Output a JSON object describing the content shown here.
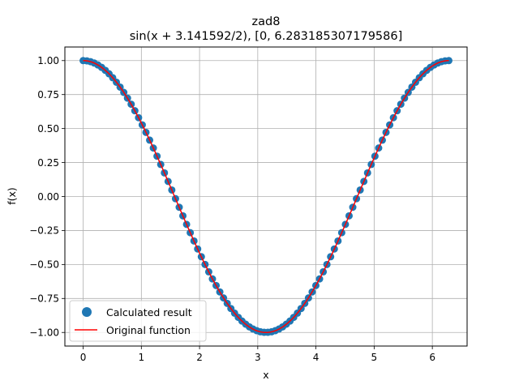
{
  "chart_data": {
    "type": "scatter",
    "title": "zad8",
    "subtitle": "sin(x + 3.141592/2), [0, 6.283185307179586]",
    "xlabel": "x",
    "ylabel": "f(x)",
    "xlim": [
      -0.3142,
      6.5973
    ],
    "ylim": [
      -1.1,
      1.1
    ],
    "xticks": [
      0,
      1,
      2,
      3,
      4,
      5,
      6
    ],
    "xtick_labels": [
      "0",
      "1",
      "2",
      "3",
      "4",
      "5",
      "6"
    ],
    "yticks": [
      1.0,
      0.75,
      0.5,
      0.25,
      0.0,
      -0.25,
      -0.5,
      -0.75,
      -1.0
    ],
    "ytick_labels": [
      "1.00",
      "0.75",
      "0.50",
      "0.25",
      "0.00",
      "−0.25",
      "−0.50",
      "−0.75",
      "−1.00"
    ],
    "grid": true,
    "legend_position": "lower-left",
    "series": [
      {
        "name": "Calculated result",
        "kind": "scatter",
        "color": "#1f77b4",
        "x": [
          0.0,
          0.0635,
          0.1269,
          0.1904,
          0.2539,
          0.3173,
          0.3808,
          0.4443,
          0.5077,
          0.5712,
          0.6347,
          0.6981,
          0.7616,
          0.8251,
          0.8885,
          0.952,
          1.0155,
          1.0789,
          1.1424,
          1.2059,
          1.2693,
          1.3328,
          1.3963,
          1.4597,
          1.5232,
          1.5867,
          1.6501,
          1.7136,
          1.7771,
          1.8405,
          1.904,
          1.9675,
          2.0309,
          2.0944,
          2.1579,
          2.2213,
          2.2848,
          2.3483,
          2.4117,
          2.4752,
          2.5387,
          2.6021,
          2.6656,
          2.7291,
          2.7925,
          2.856,
          2.9195,
          2.9829,
          3.0464,
          3.1099,
          3.1733,
          3.2368,
          3.3003,
          3.3637,
          3.4272,
          3.4907,
          3.5541,
          3.6176,
          3.6811,
          3.7445,
          3.808,
          3.8715,
          3.9349,
          3.9984,
          4.0619,
          4.1253,
          4.1888,
          4.2523,
          4.3157,
          4.3792,
          4.4427,
          4.5061,
          4.5696,
          4.6331,
          4.6965,
          4.76,
          4.8235,
          4.8869,
          4.9504,
          5.0139,
          5.0773,
          5.1408,
          5.2043,
          5.2677,
          5.3312,
          5.3947,
          5.4581,
          5.5216,
          5.5851,
          5.6485,
          5.712,
          5.7755,
          5.8389,
          5.9024,
          5.9659,
          6.0293,
          6.0928,
          6.1563,
          6.2197,
          6.2832
        ],
        "y": [
          1.0,
          0.998,
          0.992,
          0.982,
          0.968,
          0.95,
          0.928,
          0.903,
          0.874,
          0.841,
          0.805,
          0.766,
          0.724,
          0.679,
          0.631,
          0.58,
          0.527,
          0.472,
          0.415,
          0.357,
          0.297,
          0.236,
          0.174,
          0.111,
          0.048,
          -0.016,
          -0.079,
          -0.142,
          -0.205,
          -0.266,
          -0.327,
          -0.386,
          -0.443,
          -0.5,
          -0.554,
          -0.606,
          -0.655,
          -0.702,
          -0.746,
          -0.786,
          -0.824,
          -0.858,
          -0.889,
          -0.916,
          -0.939,
          -0.959,
          -0.975,
          -0.987,
          -0.995,
          -0.999,
          -0.999,
          -0.995,
          -0.987,
          -0.975,
          -0.959,
          -0.939,
          -0.916,
          -0.889,
          -0.858,
          -0.824,
          -0.786,
          -0.746,
          -0.702,
          -0.655,
          -0.606,
          -0.554,
          -0.5,
          -0.443,
          -0.386,
          -0.327,
          -0.266,
          -0.205,
          -0.142,
          -0.079,
          -0.016,
          0.048,
          0.111,
          0.174,
          0.236,
          0.297,
          0.357,
          0.415,
          0.472,
          0.527,
          0.58,
          0.631,
          0.679,
          0.724,
          0.766,
          0.805,
          0.841,
          0.874,
          0.903,
          0.928,
          0.95,
          0.968,
          0.982,
          0.992,
          0.998,
          1.0
        ]
      },
      {
        "name": "Original function",
        "kind": "line",
        "color": "#ff0000",
        "function": "sin(x + 3.141592/2)",
        "x_range": [
          0,
          6.283185307179586
        ]
      }
    ]
  }
}
